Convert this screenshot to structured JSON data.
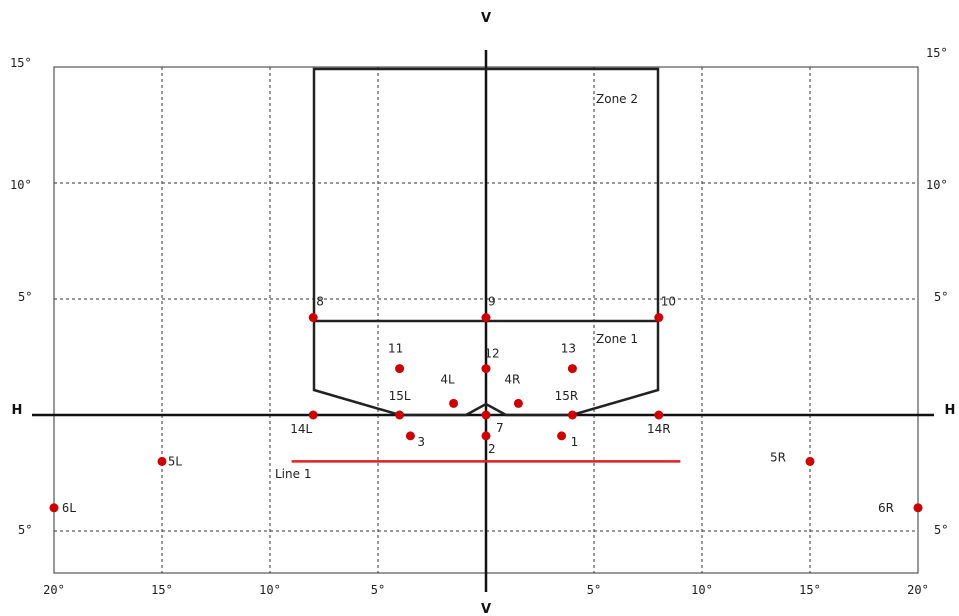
{
  "axis_labels": {
    "v_top": "V",
    "v_bottom": "V",
    "h_left": "H",
    "h_right": "H"
  },
  "left_ticks": [
    "15°",
    "10°",
    "5°",
    "5°"
  ],
  "right_ticks": [
    "15°",
    "10°",
    "5°",
    "5°"
  ],
  "bottom_ticks": [
    "20°",
    "15°",
    "10°",
    "5°",
    "5°",
    "10°",
    "15°",
    "20°"
  ],
  "zones": {
    "zone2": "Zone 2",
    "zone1": "Zone 1",
    "line1": "Line 1"
  },
  "colors": {
    "points": "#cc0000",
    "line1": "#e02020",
    "structure": "#222222"
  },
  "points": [
    {
      "label": "8",
      "x": -8,
      "y": 4.2
    },
    {
      "label": "9",
      "x": 0,
      "y": 4.2
    },
    {
      "label": "10",
      "x": 8,
      "y": 4.2
    },
    {
      "label": "11",
      "x": -4,
      "y": 2.0
    },
    {
      "label": "12",
      "x": 0,
      "y": 2.0
    },
    {
      "label": "13",
      "x": 4,
      "y": 2.0
    },
    {
      "label": "4L",
      "x": -1.5,
      "y": 0.5
    },
    {
      "label": "4R",
      "x": 1.5,
      "y": 0.5
    },
    {
      "label": "15L",
      "x": -4,
      "y": 0
    },
    {
      "label": "15R",
      "x": 4,
      "y": 0
    },
    {
      "label": "14L",
      "x": -8,
      "y": 0
    },
    {
      "label": "14R",
      "x": 8,
      "y": 0
    },
    {
      "label": "7",
      "x": 0,
      "y": 0
    },
    {
      "label": "3",
      "x": -3.5,
      "y": -0.9
    },
    {
      "label": "2",
      "x": 0,
      "y": -0.9
    },
    {
      "label": "1",
      "x": 3.5,
      "y": -0.9
    },
    {
      "label": "5L",
      "x": -15,
      "y": -2
    },
    {
      "label": "5R",
      "x": 15,
      "y": -2
    },
    {
      "label": "6L",
      "x": -20,
      "y": -4
    },
    {
      "label": "6R",
      "x": 20,
      "y": -4
    }
  ],
  "line1": {
    "x1": -9,
    "x2": 9,
    "y": -2
  }
}
